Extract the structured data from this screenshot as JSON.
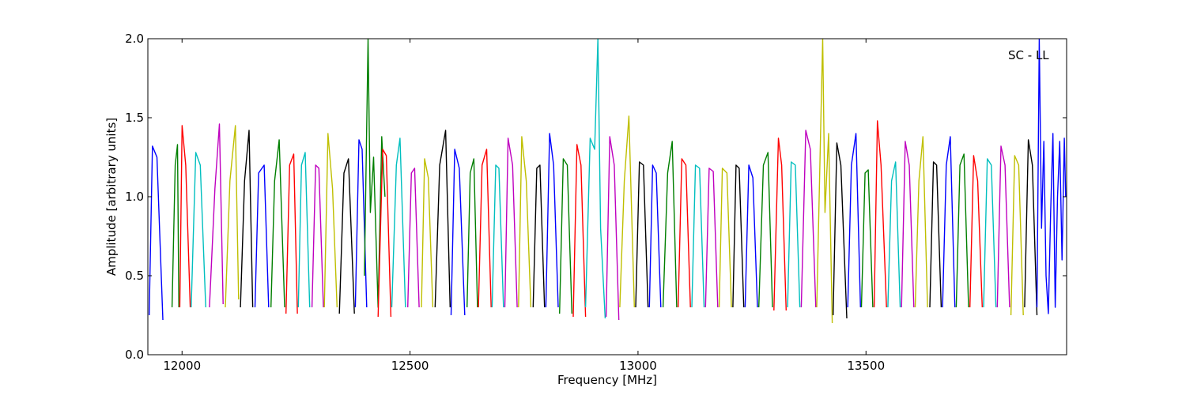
{
  "chart_data": {
    "type": "line",
    "title": "",
    "annotation": "SC - LL",
    "xlabel": "Frequency [MHz]",
    "ylabel": "Amplitude [arbitrary units]",
    "xlim": [
      11925,
      13940
    ],
    "ylim": [
      0.0,
      2.0
    ],
    "x_ticks": [
      {
        "value": 12000,
        "label": "12000"
      },
      {
        "value": 12500,
        "label": "12500"
      },
      {
        "value": 13000,
        "label": "13000"
      },
      {
        "value": 13500,
        "label": "13500"
      }
    ],
    "y_ticks": [
      {
        "value": 0.0,
        "label": "0.0"
      },
      {
        "value": 0.5,
        "label": "0.5"
      },
      {
        "value": 1.0,
        "label": "1.0"
      },
      {
        "value": 1.5,
        "label": "1.5"
      },
      {
        "value": 2.0,
        "label": "2.0"
      }
    ],
    "grid": false,
    "legend": "none",
    "color_cycle": [
      "#0000ff",
      "#ff0000",
      "#00bfbf",
      "#bf00bf",
      "#bfbf00",
      "#000000",
      "#007f00"
    ],
    "series": [
      {
        "color": "#0000ff",
        "x": [
          11928,
          11935,
          11945,
          11958
        ],
        "y": [
          0.25,
          1.32,
          1.25,
          0.22
        ]
      },
      {
        "color": "#007f00",
        "x": [
          11978,
          11985,
          11990,
          11993
        ],
        "y": [
          0.3,
          1.2,
          1.33,
          0.3
        ]
      },
      {
        "color": "#ff0000",
        "x": [
          11995,
          12000,
          12008,
          12018
        ],
        "y": [
          0.3,
          1.45,
          1.2,
          0.3
        ]
      },
      {
        "color": "#00bfbf",
        "x": [
          12020,
          12030,
          12040,
          12052
        ],
        "y": [
          0.3,
          1.28,
          1.2,
          0.3
        ]
      },
      {
        "color": "#bf00bf",
        "x": [
          12060,
          12072,
          12082,
          12090
        ],
        "y": [
          0.3,
          1.05,
          1.46,
          0.32
        ]
      },
      {
        "color": "#bfbf00",
        "x": [
          12095,
          12105,
          12117,
          12124
        ],
        "y": [
          0.3,
          1.1,
          1.45,
          0.35
        ]
      },
      {
        "color": "#000000",
        "x": [
          12128,
          12137,
          12147,
          12155
        ],
        "y": [
          0.3,
          1.1,
          1.42,
          0.3
        ]
      },
      {
        "color": "#0000ff",
        "x": [
          12160,
          12168,
          12180,
          12190
        ],
        "y": [
          0.3,
          1.15,
          1.2,
          0.3
        ]
      },
      {
        "color": "#007f00",
        "x": [
          12195,
          12203,
          12213,
          12225
        ],
        "y": [
          0.3,
          1.1,
          1.36,
          0.3
        ]
      },
      {
        "color": "#ff0000",
        "x": [
          12228,
          12236,
          12245,
          12253
        ],
        "y": [
          0.26,
          1.2,
          1.27,
          0.26
        ]
      },
      {
        "color": "#00bfbf",
        "x": [
          12255,
          12262,
          12270,
          12280
        ],
        "y": [
          0.3,
          1.2,
          1.28,
          0.3
        ]
      },
      {
        "color": "#bf00bf",
        "x": [
          12285,
          12293,
          12300,
          12310
        ],
        "y": [
          0.3,
          1.2,
          1.18,
          0.3
        ]
      },
      {
        "color": "#bfbf00",
        "x": [
          12312,
          12320,
          12330,
          12340
        ],
        "y": [
          0.3,
          1.4,
          1.05,
          0.3
        ]
      },
      {
        "color": "#000000",
        "x": [
          12345,
          12355,
          12365,
          12378
        ],
        "y": [
          0.26,
          1.15,
          1.24,
          0.26
        ]
      },
      {
        "color": "#0000ff",
        "x": [
          12380,
          12388,
          12395,
          12405
        ],
        "y": [
          0.3,
          1.36,
          1.3,
          0.3
        ]
      },
      {
        "color": "#007f00",
        "x": [
          12400,
          12408,
          12413,
          12420,
          12430,
          12438,
          12445
        ],
        "y": [
          0.5,
          2.0,
          0.9,
          1.25,
          0.3,
          1.38,
          1.0
        ]
      },
      {
        "color": "#ff0000",
        "x": [
          12430,
          12440,
          12448,
          12458
        ],
        "y": [
          0.24,
          1.3,
          1.26,
          0.24
        ]
      },
      {
        "color": "#00bfbf",
        "x": [
          12460,
          12470,
          12478,
          12490
        ],
        "y": [
          0.3,
          1.2,
          1.37,
          0.3
        ]
      },
      {
        "color": "#bf00bf",
        "x": [
          12495,
          12503,
          12510,
          12520
        ],
        "y": [
          0.3,
          1.15,
          1.18,
          0.3
        ]
      },
      {
        "color": "#bfbf00",
        "x": [
          12525,
          12532,
          12540,
          12550
        ],
        "y": [
          0.3,
          1.24,
          1.12,
          0.3
        ]
      },
      {
        "color": "#000000",
        "x": [
          12555,
          12565,
          12578,
          12588
        ],
        "y": [
          0.3,
          1.2,
          1.42,
          0.3
        ]
      },
      {
        "color": "#0000ff",
        "x": [
          12590,
          12598,
          12608,
          12620
        ],
        "y": [
          0.25,
          1.3,
          1.18,
          0.25
        ]
      },
      {
        "color": "#007f00",
        "x": [
          12625,
          12632,
          12640,
          12648
        ],
        "y": [
          0.3,
          1.15,
          1.24,
          0.3
        ]
      },
      {
        "color": "#ff0000",
        "x": [
          12650,
          12658,
          12668,
          12678
        ],
        "y": [
          0.3,
          1.2,
          1.3,
          0.3
        ]
      },
      {
        "color": "#00bfbf",
        "x": [
          12680,
          12688,
          12695,
          12705
        ],
        "y": [
          0.3,
          1.2,
          1.18,
          0.3
        ]
      },
      {
        "color": "#bf00bf",
        "x": [
          12708,
          12715,
          12725,
          12735
        ],
        "y": [
          0.3,
          1.37,
          1.2,
          0.3
        ]
      },
      {
        "color": "#bfbf00",
        "x": [
          12738,
          12745,
          12755,
          12765
        ],
        "y": [
          0.3,
          1.38,
          1.1,
          0.3
        ]
      },
      {
        "color": "#000000",
        "x": [
          12770,
          12778,
          12785,
          12795
        ],
        "y": [
          0.3,
          1.18,
          1.2,
          0.3
        ]
      },
      {
        "color": "#0000ff",
        "x": [
          12798,
          12806,
          12815,
          12825
        ],
        "y": [
          0.3,
          1.4,
          1.2,
          0.3
        ]
      },
      {
        "color": "#007f00",
        "x": [
          12828,
          12836,
          12845,
          12855
        ],
        "y": [
          0.26,
          1.24,
          1.2,
          0.26
        ]
      },
      {
        "color": "#ff0000",
        "x": [
          12858,
          12866,
          12875,
          12885
        ],
        "y": [
          0.24,
          1.33,
          1.2,
          0.24
        ]
      },
      {
        "color": "#00bfbf",
        "x": [
          12885,
          12895,
          12905,
          12912,
          12918,
          12928
        ],
        "y": [
          0.3,
          1.37,
          1.3,
          2.0,
          0.8,
          0.23
        ]
      },
      {
        "color": "#bf00bf",
        "x": [
          12930,
          12938,
          12948,
          12958
        ],
        "y": [
          0.24,
          1.38,
          1.2,
          0.22
        ]
      },
      {
        "color": "#bfbf00",
        "x": [
          12960,
          12970,
          12980,
          12992
        ],
        "y": [
          0.3,
          1.1,
          1.51,
          0.3
        ]
      },
      {
        "color": "#000000",
        "x": [
          12995,
          13003,
          13012,
          13022
        ],
        "y": [
          0.3,
          1.22,
          1.2,
          0.3
        ]
      },
      {
        "color": "#0000ff",
        "x": [
          13025,
          13032,
          13040,
          13050
        ],
        "y": [
          0.3,
          1.2,
          1.15,
          0.3
        ]
      },
      {
        "color": "#007f00",
        "x": [
          13055,
          13065,
          13075,
          13085
        ],
        "y": [
          0.3,
          1.15,
          1.35,
          0.3
        ]
      },
      {
        "color": "#ff0000",
        "x": [
          13088,
          13096,
          13105,
          13115
        ],
        "y": [
          0.3,
          1.24,
          1.2,
          0.3
        ]
      },
      {
        "color": "#00bfbf",
        "x": [
          13118,
          13126,
          13135,
          13145
        ],
        "y": [
          0.3,
          1.2,
          1.18,
          0.3
        ]
      },
      {
        "color": "#bf00bf",
        "x": [
          13148,
          13156,
          13165,
          13175
        ],
        "y": [
          0.3,
          1.18,
          1.16,
          0.3
        ]
      },
      {
        "color": "#bfbf00",
        "x": [
          13178,
          13185,
          13195,
          13205
        ],
        "y": [
          0.3,
          1.18,
          1.15,
          0.3
        ]
      },
      {
        "color": "#000000",
        "x": [
          13208,
          13215,
          13222,
          13232
        ],
        "y": [
          0.3,
          1.2,
          1.18,
          0.3
        ]
      },
      {
        "color": "#0000ff",
        "x": [
          13235,
          13243,
          13252,
          13262
        ],
        "y": [
          0.3,
          1.2,
          1.12,
          0.3
        ]
      },
      {
        "color": "#007f00",
        "x": [
          13265,
          13275,
          13285,
          13295
        ],
        "y": [
          0.3,
          1.2,
          1.28,
          0.3
        ]
      },
      {
        "color": "#ff0000",
        "x": [
          13298,
          13308,
          13315,
          13325
        ],
        "y": [
          0.28,
          1.37,
          1.2,
          0.28
        ]
      },
      {
        "color": "#00bfbf",
        "x": [
          13328,
          13336,
          13345,
          13355
        ],
        "y": [
          0.3,
          1.22,
          1.2,
          0.3
        ]
      },
      {
        "color": "#bf00bf",
        "x": [
          13358,
          13368,
          13378,
          13390
        ],
        "y": [
          0.3,
          1.42,
          1.3,
          0.3
        ]
      },
      {
        "color": "#bfbf00",
        "x": [
          13392,
          13400,
          13405,
          13410,
          13418,
          13426
        ],
        "y": [
          0.3,
          1.35,
          2.0,
          0.9,
          1.4,
          0.2
        ]
      },
      {
        "color": "#000000",
        "x": [
          13428,
          13436,
          13445,
          13458
        ],
        "y": [
          0.25,
          1.34,
          1.2,
          0.23
        ]
      },
      {
        "color": "#0000ff",
        "x": [
          13460,
          13468,
          13478,
          13488
        ],
        "y": [
          0.3,
          1.2,
          1.4,
          0.3
        ]
      },
      {
        "color": "#007f00",
        "x": [
          13490,
          13498,
          13505,
          13515
        ],
        "y": [
          0.3,
          1.15,
          1.17,
          0.3
        ]
      },
      {
        "color": "#ff0000",
        "x": [
          13518,
          13525,
          13533,
          13545
        ],
        "y": [
          0.3,
          1.48,
          1.2,
          0.3
        ]
      },
      {
        "color": "#00bfbf",
        "x": [
          13548,
          13556,
          13565,
          13575
        ],
        "y": [
          0.3,
          1.1,
          1.22,
          0.3
        ]
      },
      {
        "color": "#bf00bf",
        "x": [
          13578,
          13586,
          13595,
          13605
        ],
        "y": [
          0.3,
          1.35,
          1.2,
          0.3
        ]
      },
      {
        "color": "#bfbf00",
        "x": [
          13608,
          13616,
          13625,
          13635
        ],
        "y": [
          0.3,
          1.1,
          1.38,
          0.3
        ]
      },
      {
        "color": "#000000",
        "x": [
          13640,
          13648,
          13655,
          13665
        ],
        "y": [
          0.3,
          1.22,
          1.2,
          0.3
        ]
      },
      {
        "color": "#0000ff",
        "x": [
          13668,
          13676,
          13685,
          13695
        ],
        "y": [
          0.3,
          1.2,
          1.38,
          0.3
        ]
      },
      {
        "color": "#007f00",
        "x": [
          13698,
          13706,
          13715,
          13725
        ],
        "y": [
          0.3,
          1.2,
          1.27,
          0.3
        ]
      },
      {
        "color": "#ff0000",
        "x": [
          13728,
          13736,
          13745,
          13755
        ],
        "y": [
          0.3,
          1.26,
          1.1,
          0.3
        ]
      },
      {
        "color": "#00bfbf",
        "x": [
          13758,
          13766,
          13775,
          13785
        ],
        "y": [
          0.3,
          1.24,
          1.2,
          0.3
        ]
      },
      {
        "color": "#bf00bf",
        "x": [
          13788,
          13796,
          13805,
          13815
        ],
        "y": [
          0.3,
          1.32,
          1.2,
          0.3
        ]
      },
      {
        "color": "#bfbf00",
        "x": [
          13818,
          13826,
          13835,
          13845
        ],
        "y": [
          0.25,
          1.26,
          1.2,
          0.25
        ]
      },
      {
        "color": "#000000",
        "x": [
          13848,
          13856,
          13865,
          13875
        ],
        "y": [
          0.3,
          1.36,
          1.2,
          0.25
        ]
      },
      {
        "color": "#0000ff",
        "x": [
          13875,
          13880,
          13885,
          13890,
          13895,
          13900,
          13905,
          13910,
          13915,
          13920,
          13925,
          13930,
          13935,
          13938
        ],
        "y": [
          0.3,
          2.0,
          0.8,
          1.35,
          0.5,
          0.26,
          0.9,
          1.4,
          0.3,
          1.0,
          1.35,
          0.6,
          1.37,
          1.0
        ]
      }
    ]
  }
}
